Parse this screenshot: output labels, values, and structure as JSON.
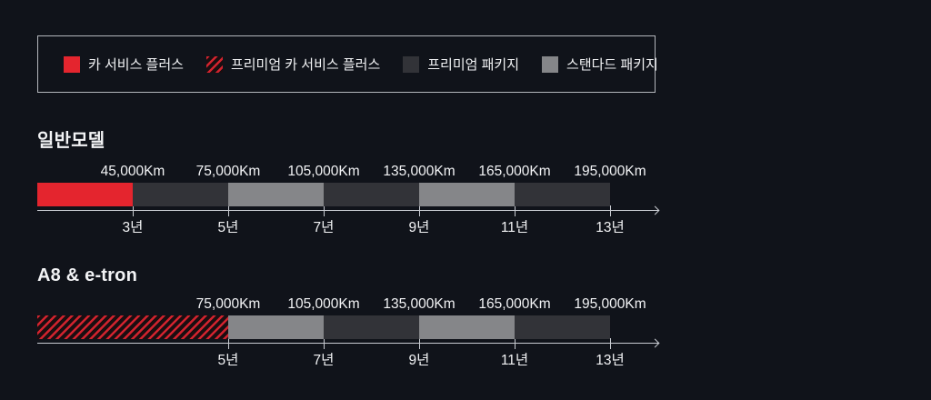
{
  "colors": {
    "background": "#10131a",
    "text": "#f2f3f5",
    "axis": "#c9ccd2",
    "legend_border": "#b4b7bc",
    "red": "#e4252e",
    "dark": "#323338",
    "light": "#858689",
    "hatch_stripe": "#d2232e",
    "hatch_bg": "#1a0e11"
  },
  "legend": {
    "items": [
      {
        "label": "카 서비스 플러스",
        "swatch": "red"
      },
      {
        "label": "프리미엄 카 서비스 플러스",
        "swatch": "hatched"
      },
      {
        "label": "프리미엄 패키지",
        "swatch": "dark"
      },
      {
        "label": "스탠다드 패키지",
        "swatch": "light"
      }
    ]
  },
  "chart_data": [
    {
      "type": "bar",
      "title": "일반모델",
      "orientation": "horizontal-timeline",
      "x_axis": {
        "unit": "년 (years)",
        "secondary_unit": "Km",
        "arrow": true
      },
      "segments": [
        {
          "package": "카 서비스 플러스",
          "style": "red",
          "from_year": 0,
          "to_year": 3,
          "span_units": 1
        },
        {
          "package": "프리미엄 패키지",
          "style": "dark",
          "from_year": 3,
          "to_year": 5,
          "span_units": 1
        },
        {
          "package": "스탠다드 패키지",
          "style": "light",
          "from_year": 5,
          "to_year": 7,
          "span_units": 1
        },
        {
          "package": "프리미엄 패키지",
          "style": "dark",
          "from_year": 7,
          "to_year": 9,
          "span_units": 1
        },
        {
          "package": "스탠다드 패키지",
          "style": "light",
          "from_year": 9,
          "to_year": 11,
          "span_units": 1
        },
        {
          "package": "프리미엄 패키지",
          "style": "dark",
          "from_year": 11,
          "to_year": 13,
          "span_units": 1
        }
      ],
      "boundaries": [
        {
          "km": "45,000Km",
          "year": "3년"
        },
        {
          "km": "75,000Km",
          "year": "5년"
        },
        {
          "km": "105,000Km",
          "year": "7년"
        },
        {
          "km": "135,000Km",
          "year": "9년"
        },
        {
          "km": "165,000Km",
          "year": "11년"
        },
        {
          "km": "195,000Km",
          "year": "13년"
        }
      ]
    },
    {
      "type": "bar",
      "title": "A8 & e-tron",
      "orientation": "horizontal-timeline",
      "x_axis": {
        "unit": "년 (years)",
        "secondary_unit": "Km",
        "arrow": true
      },
      "segments": [
        {
          "package": "프리미엄 카 서비스 플러스",
          "style": "hatched",
          "from_year": 0,
          "to_year": 5,
          "span_units": 2
        },
        {
          "package": "스탠다드 패키지",
          "style": "light",
          "from_year": 5,
          "to_year": 7,
          "span_units": 1
        },
        {
          "package": "프리미엄 패키지",
          "style": "dark",
          "from_year": 7,
          "to_year": 9,
          "span_units": 1
        },
        {
          "package": "스탠다드 패키지",
          "style": "light",
          "from_year": 9,
          "to_year": 11,
          "span_units": 1
        },
        {
          "package": "프리미엄 패키지",
          "style": "dark",
          "from_year": 11,
          "to_year": 13,
          "span_units": 1
        }
      ],
      "boundaries": [
        {
          "km": "75,000Km",
          "year": "5년"
        },
        {
          "km": "105,000Km",
          "year": "7년"
        },
        {
          "km": "135,000Km",
          "year": "9년"
        },
        {
          "km": "165,000Km",
          "year": "11년"
        },
        {
          "km": "195,000Km",
          "year": "13년"
        }
      ]
    }
  ]
}
